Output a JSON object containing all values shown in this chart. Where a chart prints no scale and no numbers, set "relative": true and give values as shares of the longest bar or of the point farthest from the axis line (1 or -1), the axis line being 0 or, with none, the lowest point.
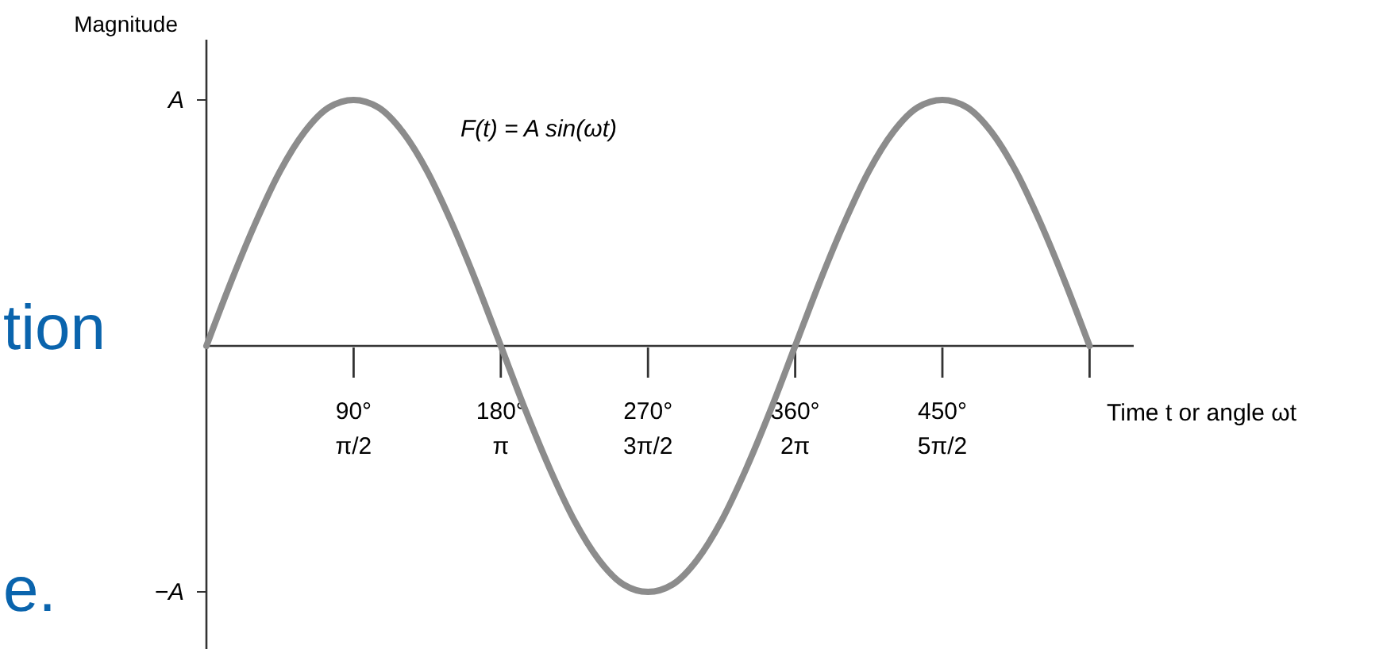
{
  "chart_data": {
    "type": "line",
    "relative": true,
    "ylabel": "Magnitude",
    "xlabel": "Time t or angle ωt",
    "annotations": [
      "F(t) = A sin(ωt)",
      "tion",
      "e.",
      "A",
      "−A"
    ],
    "categories": [
      null,
      null,
      null,
      null,
      null,
      null,
      "90°\nπ/2",
      null,
      null,
      null,
      null,
      null,
      "180°\nπ",
      null,
      null,
      null,
      null,
      null,
      "270°\n3π/2",
      null,
      null,
      null,
      null,
      null,
      "360°\n2π",
      null,
      null,
      null,
      null,
      null,
      "450°\n5π/2",
      null,
      null,
      null,
      null,
      null,
      null
    ],
    "grid": false,
    "marker": "none",
    "line_style": "solid",
    "series": [
      {
        "color": "#8c8c8c",
        "values": [
          0,
          0.26,
          0.5,
          0.71,
          0.87,
          0.97,
          1,
          0.97,
          0.87,
          0.71,
          0.5,
          0.26,
          0,
          -0.26,
          -0.5,
          -0.71,
          -0.87,
          -0.97,
          -1,
          -0.97,
          -0.87,
          -0.71,
          -0.5,
          -0.26,
          0,
          0.26,
          0.5,
          0.71,
          0.87,
          0.97,
          1,
          0.97,
          0.87,
          0.71,
          0.5,
          0.26,
          0
        ]
      }
    ]
  }
}
